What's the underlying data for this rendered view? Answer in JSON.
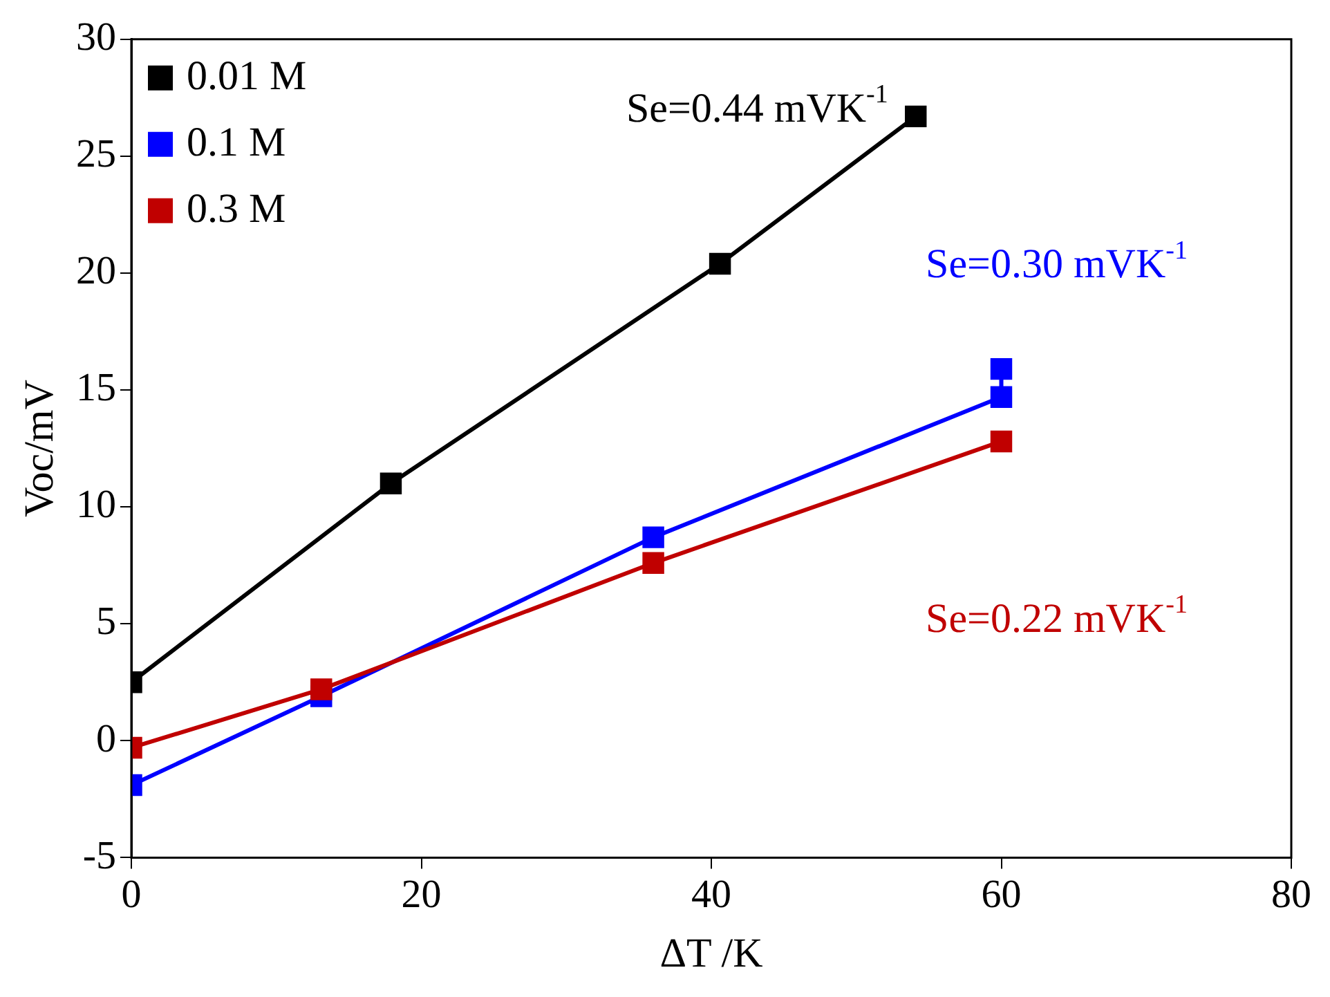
{
  "chart_data": {
    "type": "line",
    "xlabel": "ΔT /K",
    "ylabel": "Voc/mV",
    "xlim": [
      0,
      80
    ],
    "xticks": [
      0,
      20,
      40,
      60,
      80
    ],
    "ylim": [
      -5,
      30
    ],
    "yticks": [
      -5,
      0,
      5,
      10,
      15,
      20,
      25,
      30
    ],
    "grid": false,
    "legend": "top left",
    "marker": "square",
    "line_style": "solid",
    "series": [
      {
        "name": "0.01 M",
        "color": "#000000",
        "x": [
          0,
          17.9,
          40.6,
          54.1
        ],
        "values": [
          2.5,
          11.0,
          20.4,
          26.7
        ]
      },
      {
        "name": "0.1 M",
        "color": "#0000ff",
        "x": [
          0,
          13.1,
          36,
          60,
          60
        ],
        "values": [
          -1.9,
          1.9,
          8.7,
          14.7,
          15.9
        ]
      },
      {
        "name": "0.3 M",
        "color": "#c00000",
        "x": [
          0,
          13.1,
          36,
          60
        ],
        "values": [
          -0.3,
          2.2,
          7.6,
          12.8
        ]
      }
    ],
    "annotations": [
      "Se=0.44 mVK$^{-1}$",
      "Se=0.30 mVK$^{-1}$",
      "Se=0.22 mVK$^{-1}$"
    ]
  }
}
